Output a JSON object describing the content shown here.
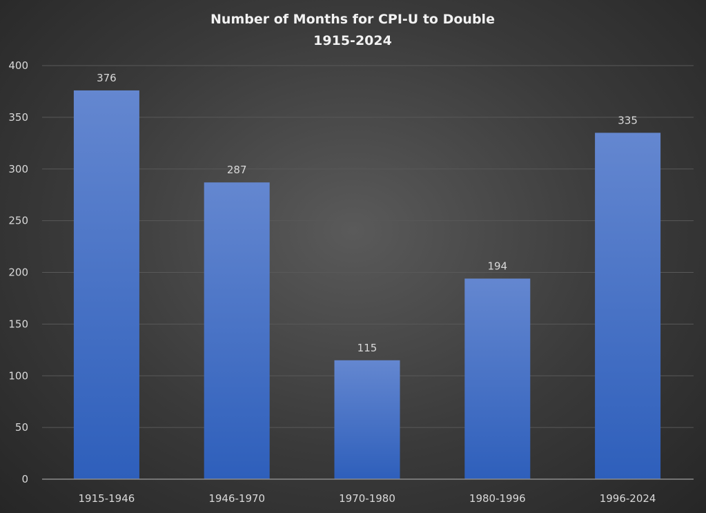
{
  "chart_data": {
    "type": "bar",
    "title": "Number of Months for CPI-U to Double",
    "subtitle": "1915-2024",
    "xlabel": "",
    "ylabel": "",
    "categories": [
      "1915-1946",
      "1946-1970",
      "1970-1980",
      "1980-1996",
      "1996-2024"
    ],
    "values": [
      376,
      287,
      115,
      194,
      335
    ],
    "ylim": [
      0,
      400
    ],
    "yticks": [
      0,
      50,
      100,
      150,
      200,
      250,
      300,
      350,
      400
    ],
    "grid": true,
    "legend": "none",
    "colors": {
      "bar_top": "#6487d0",
      "bar_bottom": "#2e5fbb",
      "grid": "#595959",
      "axis": "#8c8c8c"
    }
  }
}
